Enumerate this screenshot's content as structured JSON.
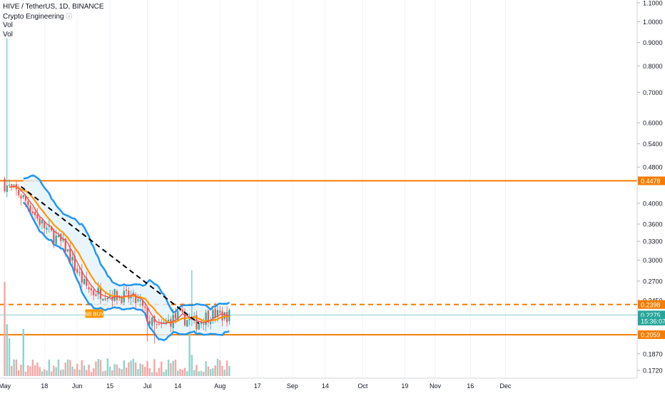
{
  "legend": {
    "symbol": "HIVE / TetherUS, 1D, BINANCE",
    "indicator": "Crypto Engineering",
    "indicator_icon": "info-icon",
    "vol1": "Vol",
    "vol2": "Vol"
  },
  "chart_data": {
    "type": "candlestick",
    "y_scale": "log",
    "ylim": [
      0.168,
      1.12
    ],
    "y_ticks": [
      "1.1000",
      "1.0000",
      "0.9000",
      "0.8000",
      "0.7000",
      "0.6000",
      "0.5400",
      "0.4800",
      "0.4000",
      "0.3600",
      "0.3300",
      "0.3000",
      "0.2700",
      "0.2450",
      "0.1870",
      "0.1720"
    ],
    "x_ticks": [
      "May",
      "18",
      "Jun",
      "15",
      "Jul",
      "14",
      "Aug",
      "17",
      "Sep",
      "14",
      "Oct",
      "19",
      "Nov",
      "16",
      "Dec"
    ],
    "price_labels": [
      {
        "text": "0.4478",
        "value": 0.4478,
        "color": "#f57c00"
      },
      {
        "text": "0.2398",
        "value": 0.2398,
        "color": "#f57c00"
      },
      {
        "text": "0.2275",
        "value": 0.2275,
        "color": "#26a69a"
      },
      {
        "text": "15:36:07",
        "value": 0.2205,
        "color": "#26a69a"
      },
      {
        "text": "0.2059",
        "value": 0.2059,
        "color": "#f57c00"
      }
    ],
    "horizontal_levels": [
      {
        "value": 0.4478,
        "style": "solid",
        "color": "#f57c00"
      },
      {
        "value": 0.2398,
        "style": "dashed",
        "color": "#f57c00"
      },
      {
        "value": 0.2059,
        "style": "solid",
        "color": "#f57c00"
      }
    ],
    "last_price": 0.2275,
    "annotation": "BB BUY",
    "colors": {
      "up": "#26a69a",
      "down": "#ef5350",
      "bands": "#2196f3",
      "band_fill": "#e3f2fd",
      "ma_fast": "#ef5350",
      "ma_slow": "#ff9800",
      "level": "#f57c00"
    }
  }
}
